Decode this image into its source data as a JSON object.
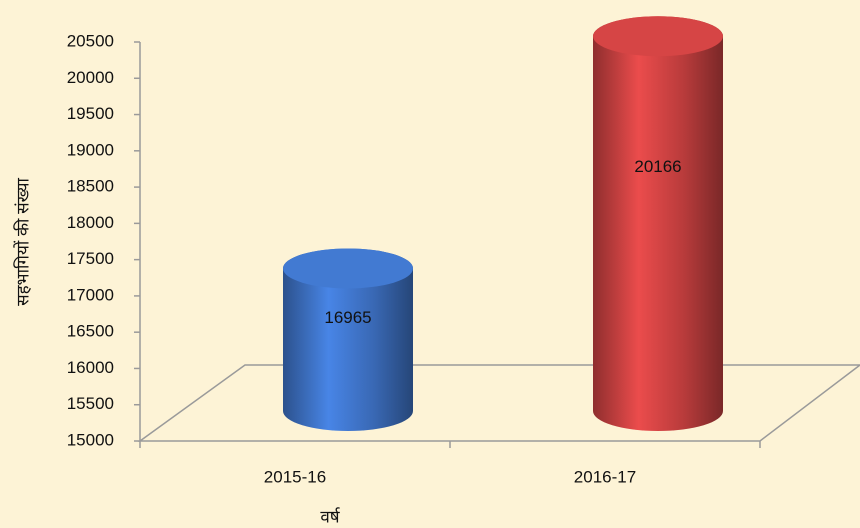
{
  "chart_data": {
    "type": "bar",
    "x_label": "वर्ष",
    "y_label": "सहभागियों की संख्या",
    "categories": [
      "2015-16",
      "2016-17"
    ],
    "values": [
      16965,
      20166
    ],
    "colors": [
      "#3f74c8",
      "#cc4242"
    ],
    "ylim": [
      15000,
      20500
    ],
    "yticks": [
      15000,
      15500,
      16000,
      16500,
      17000,
      17500,
      18000,
      18500,
      19000,
      19500,
      20000,
      20500
    ]
  }
}
